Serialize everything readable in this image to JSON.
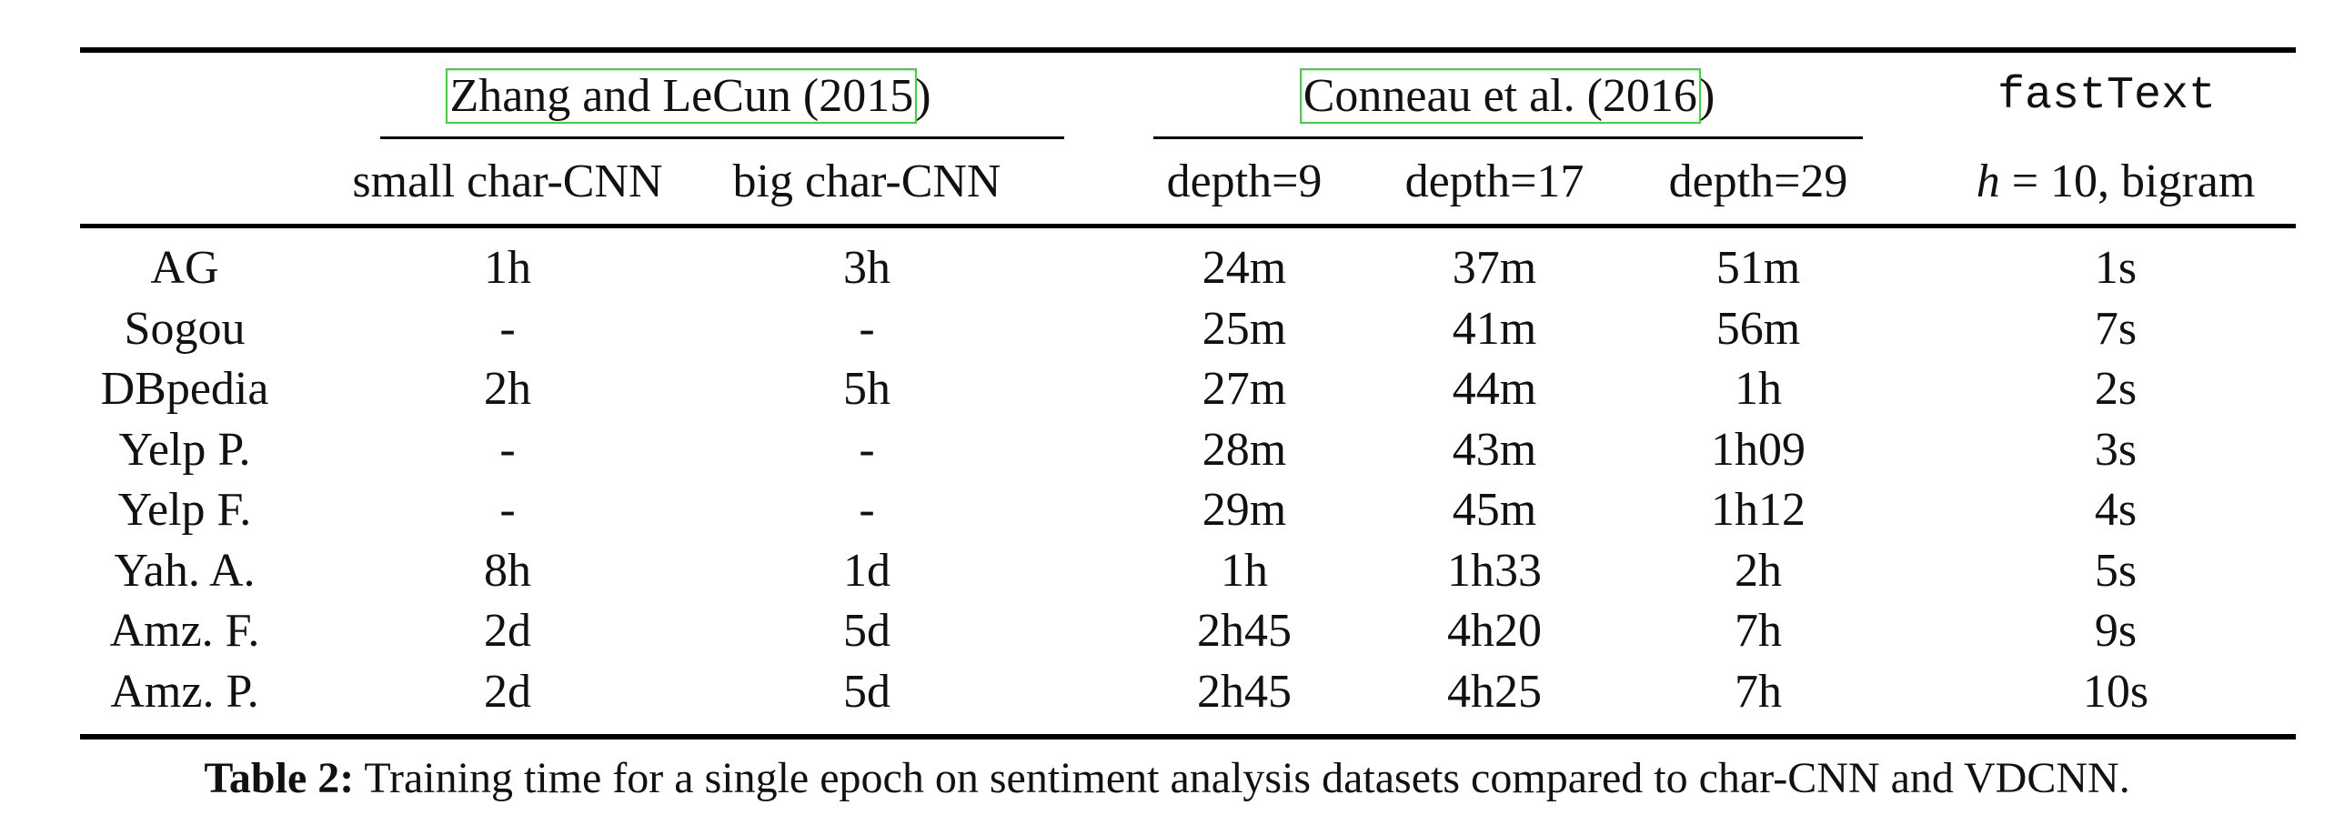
{
  "table": {
    "group_headers": {
      "zhang": {
        "boxed": "Zhang and LeCun (2015",
        "tail": ")"
      },
      "conneau": {
        "boxed": "Conneau et al. (2016",
        "tail": ")"
      },
      "fasttext": "fastText"
    },
    "sub_headers": {
      "small_char_cnn": "small char-CNN",
      "big_char_cnn": "big char-CNN",
      "depth9": "depth=9",
      "depth17": "depth=17",
      "depth29": "depth=29",
      "fasttext_h": "h",
      "fasttext_rest": " = 10, bigram"
    },
    "rows": [
      {
        "dataset": "AG",
        "small": "1h",
        "big": "3h",
        "d9": "24m",
        "d17": "37m",
        "d29": "51m",
        "ft": "1s"
      },
      {
        "dataset": "Sogou",
        "small": "-",
        "big": "-",
        "d9": "25m",
        "d17": "41m",
        "d29": "56m",
        "ft": "7s"
      },
      {
        "dataset": "DBpedia",
        "small": "2h",
        "big": "5h",
        "d9": "27m",
        "d17": "44m",
        "d29": "1h",
        "ft": "2s"
      },
      {
        "dataset": "Yelp P.",
        "small": "-",
        "big": "-",
        "d9": "28m",
        "d17": "43m",
        "d29": "1h09",
        "ft": "3s"
      },
      {
        "dataset": "Yelp F.",
        "small": "-",
        "big": "-",
        "d9": "29m",
        "d17": "45m",
        "d29": "1h12",
        "ft": "4s"
      },
      {
        "dataset": "Yah. A.",
        "small": "8h",
        "big": "1d",
        "d9": "1h",
        "d17": "1h33",
        "d29": "2h",
        "ft": "5s"
      },
      {
        "dataset": "Amz. F.",
        "small": "2d",
        "big": "5d",
        "d9": "2h45",
        "d17": "4h20",
        "d29": "7h",
        "ft": "9s"
      },
      {
        "dataset": "Amz. P.",
        "small": "2d",
        "big": "5d",
        "d9": "2h45",
        "d17": "4h25",
        "d29": "7h",
        "ft": "10s"
      }
    ]
  },
  "caption": {
    "label": "Table 2:",
    "text": " Training time for a single epoch on sentiment analysis datasets compared to char-CNN and VDCNN."
  },
  "colors": {
    "rule": "#000000",
    "link_box": "#33dd33"
  }
}
